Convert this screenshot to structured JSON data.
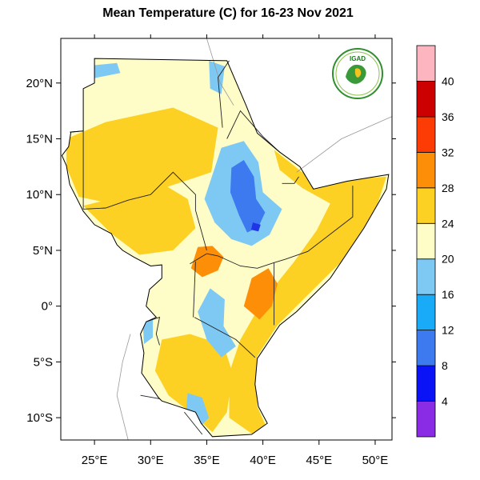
{
  "title": "Mean Temperature (C) for 16-23 Nov 2021",
  "map": {
    "lon_range": [
      22,
      51.5
    ],
    "lat_range": [
      -12,
      24
    ],
    "lon_ticks": [
      {
        "value": 25,
        "label": "25°E"
      },
      {
        "value": 30,
        "label": "30°E"
      },
      {
        "value": 35,
        "label": "35°E"
      },
      {
        "value": 40,
        "label": "40°E"
      },
      {
        "value": 45,
        "label": "45°E"
      },
      {
        "value": 50,
        "label": "50°E"
      }
    ],
    "lat_ticks": [
      {
        "value": 20,
        "label": "20°N"
      },
      {
        "value": 15,
        "label": "15°N"
      },
      {
        "value": 10,
        "label": "10°N"
      },
      {
        "value": 5,
        "label": "5°N"
      },
      {
        "value": 0,
        "label": "0°"
      },
      {
        "value": -5,
        "label": "5°S"
      },
      {
        "value": -10,
        "label": "10°S"
      }
    ],
    "region_outline": [
      [
        25,
        22.2
      ],
      [
        36.8,
        22
      ],
      [
        38.5,
        18
      ],
      [
        39.5,
        15.5
      ],
      [
        41.5,
        13.8
      ],
      [
        43.3,
        12.5
      ],
      [
        44.5,
        10.5
      ],
      [
        47.5,
        11.2
      ],
      [
        51.2,
        11.8
      ],
      [
        51,
        10.5
      ],
      [
        49,
        7
      ],
      [
        46,
        2.5
      ],
      [
        43,
        -0.5
      ],
      [
        41.5,
        -1.7
      ],
      [
        39.5,
        -4.7
      ],
      [
        39.3,
        -7
      ],
      [
        39.6,
        -9
      ],
      [
        40.4,
        -10.5
      ],
      [
        39,
        -11.5
      ],
      [
        35.5,
        -11.7
      ],
      [
        34.5,
        -10.5
      ],
      [
        34,
        -9.5
      ],
      [
        32.5,
        -9
      ],
      [
        31,
        -8.5
      ],
      [
        30.7,
        -8.2
      ],
      [
        29.2,
        -6
      ],
      [
        29.4,
        -4.2
      ],
      [
        29.1,
        -2.5
      ],
      [
        29.6,
        -1.4
      ],
      [
        30.5,
        -1
      ],
      [
        29.6,
        0
      ],
      [
        29.9,
        1.5
      ],
      [
        31,
        2.5
      ],
      [
        31,
        3.7
      ],
      [
        30,
        3.6
      ],
      [
        28.5,
        4.4
      ],
      [
        27.5,
        5
      ],
      [
        27,
        5.5
      ],
      [
        26.5,
        6.5
      ],
      [
        25,
        7.3
      ],
      [
        24,
        8.5
      ],
      [
        23.5,
        9.5
      ],
      [
        22.8,
        10.9
      ],
      [
        22.5,
        12.6
      ],
      [
        22.1,
        13.5
      ],
      [
        22.7,
        14.3
      ],
      [
        22.9,
        15.6
      ],
      [
        24,
        15.7
      ],
      [
        24,
        19.5
      ],
      [
        25,
        20
      ],
      [
        25,
        22.2
      ]
    ],
    "borders": [
      [
        [
          22.8,
          15.6
        ],
        [
          24,
          15.7
        ],
        [
          24,
          8.7
        ]
      ],
      [
        [
          37,
          22
        ],
        [
          36,
          20.5
        ],
        [
          36.4,
          16
        ]
      ],
      [
        [
          24,
          8.7
        ],
        [
          26,
          8.8
        ],
        [
          28,
          9.5
        ],
        [
          30,
          10
        ],
        [
          32,
          12
        ],
        [
          34,
          10
        ],
        [
          34,
          8.6
        ],
        [
          35,
          5
        ]
      ],
      [
        [
          33.5,
          3.8
        ],
        [
          35,
          4.7
        ]
      ],
      [
        [
          33.8,
          -1
        ],
        [
          34,
          4
        ]
      ],
      [
        [
          35,
          4.7
        ],
        [
          36,
          4.5
        ],
        [
          38,
          3.6
        ],
        [
          39.5,
          3.4
        ],
        [
          41,
          3.9
        ],
        [
          42,
          4.2
        ],
        [
          44,
          4.9
        ],
        [
          48,
          8
        ],
        [
          48,
          10.8
        ]
      ],
      [
        [
          41,
          3.9
        ],
        [
          41,
          -1.7
        ]
      ],
      [
        [
          33.9,
          -1
        ],
        [
          37.6,
          -3
        ],
        [
          39.3,
          -4.6
        ]
      ],
      [
        [
          36.8,
          15
        ],
        [
          38,
          17.5
        ],
        [
          40,
          15.2
        ],
        [
          41.5,
          13.8
        ]
      ],
      [
        [
          41.7,
          11
        ],
        [
          42.8,
          11
        ],
        [
          43.2,
          11.6
        ]
      ],
      [
        [
          29.6,
          -1.4
        ],
        [
          30.8,
          -1
        ],
        [
          30.5,
          -2.5
        ],
        [
          30.8,
          -3.5
        ]
      ],
      [
        [
          33,
          -9.5
        ],
        [
          34.6,
          -11.5
        ]
      ],
      [
        [
          29.1,
          -8
        ],
        [
          30.8,
          -8.3
        ]
      ]
    ],
    "context_lines": [
      [
        [
          35,
          24
        ],
        [
          36.2,
          20
        ],
        [
          37.4,
          18
        ]
      ],
      [
        [
          43,
          12
        ],
        [
          47,
          15
        ],
        [
          51.5,
          17
        ]
      ],
      [
        [
          28,
          -12
        ],
        [
          27,
          -8
        ],
        [
          27.5,
          -5
        ],
        [
          28.2,
          -2.5
        ]
      ]
    ],
    "patches": [
      {
        "name": "sudan-west-warm",
        "color": "#fdd024",
        "points": [
          [
            22.5,
            15
          ],
          [
            26,
            16.5
          ],
          [
            32,
            17.8
          ],
          [
            36,
            16
          ],
          [
            35.4,
            12
          ],
          [
            33,
            11.2
          ],
          [
            30,
            10.2
          ],
          [
            26,
            9.3
          ],
          [
            23.6,
            9.8
          ],
          [
            22.5,
            12.5
          ]
        ]
      },
      {
        "name": "south-sudan-warm",
        "color": "#fdd024",
        "points": [
          [
            24,
            9
          ],
          [
            28,
            10
          ],
          [
            31,
            11
          ],
          [
            33.3,
            9.6
          ],
          [
            34,
            7
          ],
          [
            32,
            5
          ],
          [
            29,
            4.6
          ],
          [
            26.5,
            6.5
          ]
        ]
      },
      {
        "name": "coast-warm",
        "color": "#fdd024",
        "points": [
          [
            41,
            14
          ],
          [
            43.5,
            12
          ],
          [
            48,
            11.4
          ],
          [
            51,
            11.6
          ],
          [
            50,
            8.5
          ],
          [
            47,
            4
          ],
          [
            44,
            1
          ],
          [
            41.3,
            -1.7
          ],
          [
            39.5,
            -4.5
          ],
          [
            39.5,
            -9
          ],
          [
            40.3,
            -10.8
          ],
          [
            39.1,
            -11.5
          ],
          [
            37,
            -10
          ],
          [
            37,
            -6
          ],
          [
            38,
            -3
          ],
          [
            40,
            0.5
          ],
          [
            42.8,
            4
          ],
          [
            44.8,
            6.8
          ],
          [
            46,
            9.2
          ],
          [
            43.5,
            10.6
          ],
          [
            41.5,
            12.2
          ]
        ]
      },
      {
        "name": "tanzania-warm",
        "color": "#fdd024",
        "points": [
          [
            31,
            -3
          ],
          [
            33.5,
            -2.5
          ],
          [
            36.5,
            -3.5
          ],
          [
            37.3,
            -6
          ],
          [
            36.8,
            -9.5
          ],
          [
            35.5,
            -11.3
          ],
          [
            33.5,
            -9.5
          ],
          [
            31.6,
            -8
          ],
          [
            30.4,
            -5.8
          ]
        ]
      },
      {
        "name": "kenya-hot",
        "color": "#fd8f08",
        "points": [
          [
            39,
            2.5
          ],
          [
            40.5,
            3.4
          ],
          [
            41.3,
            2
          ],
          [
            40.8,
            0
          ],
          [
            39.7,
            -1.2
          ],
          [
            38.3,
            0
          ]
        ]
      },
      {
        "name": "south-sudan-hot",
        "color": "#fd8f08",
        "points": [
          [
            34.2,
            5.3
          ],
          [
            35.5,
            5.4
          ],
          [
            36.5,
            4.4
          ],
          [
            36,
            3.2
          ],
          [
            34.6,
            2.6
          ],
          [
            33.6,
            3.4
          ]
        ]
      },
      {
        "name": "ethiopia-highland-cool",
        "color": "#7ec9f4",
        "points": [
          [
            36.3,
            14.2
          ],
          [
            38.3,
            14.8
          ],
          [
            39.6,
            12.9
          ],
          [
            40,
            10.2
          ],
          [
            41.7,
            8.7
          ],
          [
            40.6,
            6.4
          ],
          [
            39,
            5.4
          ],
          [
            37.2,
            6
          ],
          [
            35.7,
            7.5
          ],
          [
            34.8,
            9.6
          ]
        ]
      },
      {
        "name": "ethiopia-highland-cold",
        "color": "#3d7af0",
        "points": [
          [
            37.2,
            12.4
          ],
          [
            38.3,
            13.1
          ],
          [
            39.2,
            11.6
          ],
          [
            39.4,
            9.6
          ],
          [
            40.2,
            8.4
          ],
          [
            39.6,
            7.1
          ],
          [
            38.6,
            6.6
          ],
          [
            37.9,
            8.1
          ],
          [
            37.1,
            10.2
          ]
        ]
      },
      {
        "name": "ethiopia-highland-coldest",
        "color": "#1f35e6",
        "points": [
          [
            39.1,
            7.5
          ],
          [
            39.8,
            7.3
          ],
          [
            39.6,
            6.7
          ],
          [
            38.95,
            6.85
          ]
        ]
      },
      {
        "name": "great-lakes-cool",
        "color": "#7ec9f4",
        "points": [
          [
            35.3,
            1.6
          ],
          [
            36.6,
            0.6
          ],
          [
            36.5,
            -1.8
          ],
          [
            37.6,
            -3.6
          ],
          [
            36.3,
            -4.6
          ],
          [
            35,
            -3
          ],
          [
            34.2,
            -0.5
          ]
        ]
      },
      {
        "name": "rift-cool",
        "color": "#7ec9f4",
        "points": [
          [
            29.3,
            -1.2
          ],
          [
            30.2,
            -0.6
          ],
          [
            30.2,
            -2.8
          ],
          [
            29.4,
            -3.4
          ]
        ]
      },
      {
        "name": "southern-highlands-cool",
        "color": "#7ec9f4",
        "points": [
          [
            33.3,
            -7.8
          ],
          [
            34.6,
            -8.2
          ],
          [
            35.2,
            -10
          ],
          [
            34.2,
            -11
          ],
          [
            33.1,
            -10
          ]
        ]
      },
      {
        "name": "red-sea-hills-cool",
        "color": "#7ec9f4",
        "points": [
          [
            35.2,
            22
          ],
          [
            36.6,
            21.5
          ],
          [
            36.3,
            19
          ],
          [
            35.3,
            19.5
          ]
        ]
      },
      {
        "name": "darfur-cool",
        "color": "#7ec9f4",
        "points": [
          [
            24,
            21.5
          ],
          [
            27,
            21.8
          ],
          [
            27.3,
            20.9
          ],
          [
            24.8,
            20.4
          ]
        ]
      }
    ]
  },
  "colorbar": {
    "labels": [
      "4",
      "8",
      "12",
      "16",
      "20",
      "24",
      "28",
      "32",
      "36",
      "40"
    ],
    "colors": [
      "#8a2be6",
      "#0a13f5",
      "#3d7af0",
      "#1aabf8",
      "#7ec9f4",
      "#fefdc8",
      "#fdd024",
      "#fd8f08",
      "#fc3b05",
      "#cc0000",
      "#fdb6c0"
    ]
  },
  "land_colors": {
    "base": "#fefdc8",
    "ocean": "#ffffff"
  },
  "logo": {
    "text": "IGAD"
  }
}
